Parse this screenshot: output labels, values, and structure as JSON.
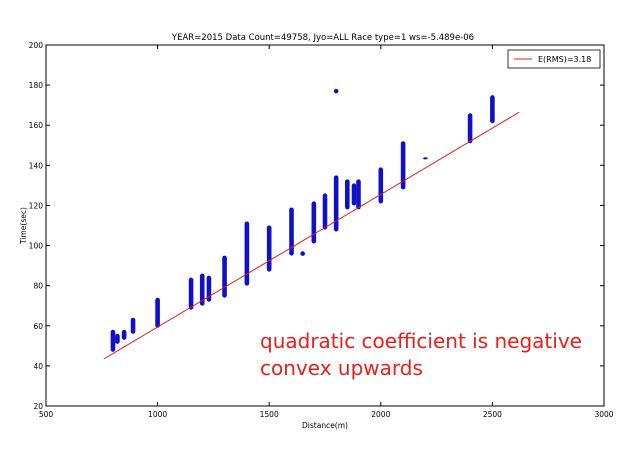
{
  "chart_data": {
    "type": "scatter",
    "title": "YEAR=2015 Data Count=49758, Jyo=ALL Race type=1 ws=-5.489e-06",
    "xlabel": "Distance(m)",
    "ylabel": "Time(sec)",
    "xlim": [
      500,
      3000
    ],
    "ylim": [
      20,
      200
    ],
    "xticks": [
      "500",
      "1000",
      "1500",
      "2000",
      "2500",
      "3000"
    ],
    "yticks": [
      "20",
      "40",
      "60",
      "80",
      "100",
      "120",
      "140",
      "160",
      "180",
      "200"
    ],
    "grid": false,
    "legend_position": "top-right",
    "legend": [
      "E(RMS)=3.18"
    ],
    "colors": {
      "points": "#1010c8",
      "fit_line": "#e02020",
      "note": "#e8201a"
    },
    "fit_line": {
      "x": [
        760,
        2620
      ],
      "y": [
        43.5,
        166.5
      ]
    },
    "point_clusters": [
      {
        "x": 800,
        "y": [
          47,
          58
        ]
      },
      {
        "x": 820,
        "y": [
          51,
          56
        ]
      },
      {
        "x": 850,
        "y": [
          53,
          58
        ]
      },
      {
        "x": 890,
        "y": [
          56,
          64
        ]
      },
      {
        "x": 1000,
        "y": [
          59,
          74
        ]
      },
      {
        "x": 1150,
        "y": [
          68,
          84
        ]
      },
      {
        "x": 1200,
        "y": [
          70,
          86
        ]
      },
      {
        "x": 1230,
        "y": [
          72,
          85
        ]
      },
      {
        "x": 1300,
        "y": [
          74,
          95
        ]
      },
      {
        "x": 1400,
        "y": [
          80,
          112
        ]
      },
      {
        "x": 1500,
        "y": [
          87,
          110
        ]
      },
      {
        "x": 1600,
        "y": [
          95,
          119
        ]
      },
      {
        "x": 1650,
        "y": [
          96,
          96
        ]
      },
      {
        "x": 1700,
        "y": [
          101,
          122
        ]
      },
      {
        "x": 1750,
        "y": [
          108,
          126
        ]
      },
      {
        "x": 1800,
        "y": [
          107,
          135
        ]
      },
      {
        "x": 1800,
        "y": [
          177,
          177
        ]
      },
      {
        "x": 1850,
        "y": [
          118,
          133
        ]
      },
      {
        "x": 1880,
        "y": [
          120,
          131
        ]
      },
      {
        "x": 1900,
        "y": [
          118,
          133
        ]
      },
      {
        "x": 2000,
        "y": [
          121,
          139
        ]
      },
      {
        "x": 2100,
        "y": [
          128,
          152
        ]
      },
      {
        "x": 2200,
        "y": [
          143,
          144
        ]
      },
      {
        "x": 2400,
        "y": [
          151,
          166
        ]
      },
      {
        "x": 2500,
        "y": [
          161,
          175
        ]
      }
    ]
  },
  "annotation": {
    "line1": "quadratic coefficient is negative",
    "line2": "convex upwards"
  }
}
